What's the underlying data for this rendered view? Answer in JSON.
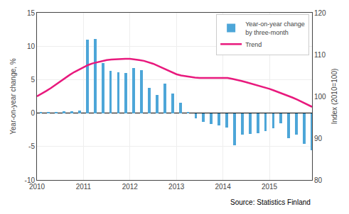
{
  "chart_data": {
    "type": "bar",
    "ylabel": "Year-on-year change, %",
    "y2label": "Index (2010=100)",
    "annotations": [
      "Source: Statistics Finland"
    ],
    "xlim": [
      2010.0,
      2015.917
    ],
    "xticks": [
      2010,
      2011,
      2012,
      2013,
      2014,
      2015
    ],
    "ylim": [
      -10,
      15
    ],
    "yticks": [
      -10,
      -5,
      0,
      5,
      10,
      15
    ],
    "y2lim": [
      80,
      120
    ],
    "y2ticks": [
      80,
      90,
      100,
      110,
      120
    ],
    "grid": true,
    "legend": "upper right",
    "series": [
      {
        "name": "Year-on-year change\nby three-month",
        "type": "bar",
        "color": "#4da6d8",
        "x": [
          2010.083,
          2010.25,
          2010.417,
          2010.583,
          2010.75,
          2010.917,
          2011.083,
          2011.25,
          2011.417,
          2011.583,
          2011.75,
          2011.917,
          2012.083,
          2012.25,
          2012.417,
          2012.583,
          2012.75,
          2012.917,
          2013.083,
          2013.25,
          2013.417,
          2013.583,
          2013.75,
          2013.917,
          2014.083,
          2014.25,
          2014.417,
          2014.583,
          2014.75,
          2014.917,
          2015.083,
          2015.25,
          2015.417,
          2015.583,
          2015.75,
          2015.917
        ],
        "values": [
          0.1,
          0.15,
          0.2,
          0.25,
          0.3,
          0.35,
          11.0,
          11.1,
          7.5,
          6.3,
          6.1,
          6.0,
          6.7,
          6.4,
          3.8,
          2.7,
          4.4,
          2.9,
          1.5,
          0.1,
          -0.8,
          -1.3,
          -1.6,
          -1.8,
          -2.2,
          -4.8,
          -3.2,
          -3.1,
          -3.0,
          -2.7,
          -2.3,
          -1.5,
          -3.7,
          -3.2,
          -4.6,
          -5.5
        ]
      },
      {
        "name": "Trend",
        "type": "line",
        "color": "#e8197d",
        "axis": "y2",
        "x": [
          2010.0,
          2010.1,
          2010.2,
          2010.3,
          2010.4,
          2010.5,
          2010.6,
          2010.7,
          2010.8,
          2010.9,
          2011.0,
          2011.1,
          2011.2,
          2011.3,
          2011.4,
          2011.5,
          2011.6,
          2011.7,
          2011.8,
          2011.9,
          2012.0,
          2012.1,
          2012.2,
          2012.3,
          2012.4,
          2012.5,
          2012.6,
          2012.7,
          2012.8,
          2012.9,
          2013.0,
          2013.1,
          2013.2,
          2013.3,
          2013.4,
          2013.5,
          2013.6,
          2013.7,
          2013.8,
          2013.9,
          2014.0,
          2014.1,
          2014.2,
          2014.3,
          2014.4,
          2014.5,
          2014.6,
          2014.7,
          2014.8,
          2014.9,
          2015.0,
          2015.1,
          2015.2,
          2015.3,
          2015.4,
          2015.5,
          2015.6,
          2015.7,
          2015.8,
          2015.917
        ],
        "values": [
          100.0,
          100.6,
          101.3,
          102.0,
          102.8,
          103.5,
          104.3,
          105.1,
          105.8,
          106.4,
          107.0,
          107.5,
          107.9,
          108.2,
          108.5,
          108.7,
          108.8,
          108.9,
          108.9,
          109.0,
          109.0,
          108.9,
          108.7,
          108.5,
          108.2,
          107.8,
          107.3,
          106.8,
          106.3,
          105.8,
          105.3,
          105.0,
          104.8,
          104.6,
          104.5,
          104.4,
          104.4,
          104.4,
          104.5,
          104.5,
          104.5,
          104.4,
          104.2,
          104.0,
          103.7,
          103.4,
          103.1,
          102.8,
          102.5,
          102.2,
          101.8,
          101.4,
          101.0,
          100.6,
          100.2,
          99.7,
          99.2,
          98.7,
          98.2,
          97.5
        ]
      }
    ]
  }
}
